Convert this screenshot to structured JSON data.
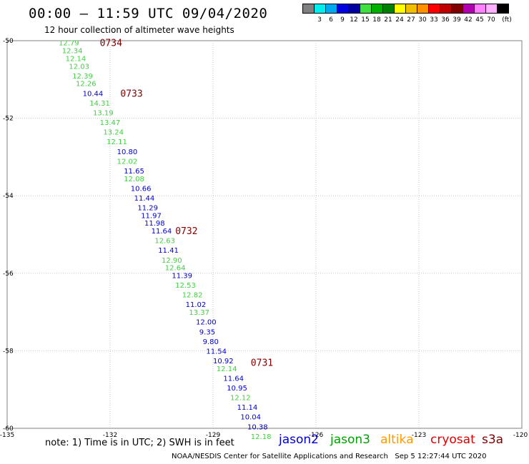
{
  "header": {
    "title": "00:00 – 11:59 UTC 09/04/2020",
    "subtitle": "12 hour collection of altimeter wave heights"
  },
  "legend": {
    "unit": "(ft)",
    "swatches": [
      {
        "color": "#808080",
        "label": ""
      },
      {
        "color": "#00eeee",
        "label": "3"
      },
      {
        "color": "#00a8f0",
        "label": "6"
      },
      {
        "color": "#0000e0",
        "label": "9"
      },
      {
        "color": "#0000a0",
        "label": "12"
      },
      {
        "color": "#40e040",
        "label": "15"
      },
      {
        "color": "#00b000",
        "label": "18"
      },
      {
        "color": "#008000",
        "label": "21"
      },
      {
        "color": "#ffff00",
        "label": "24"
      },
      {
        "color": "#f0c000",
        "label": "27"
      },
      {
        "color": "#ff9000",
        "label": "30"
      },
      {
        "color": "#ff0000",
        "label": "33"
      },
      {
        "color": "#c00000",
        "label": "36"
      },
      {
        "color": "#800000",
        "label": "39"
      },
      {
        "color": "#b000b0",
        "label": "42"
      },
      {
        "color": "#ff80ff",
        "label": "45"
      },
      {
        "color": "#ffb0ff",
        "label": "70"
      },
      {
        "color": "#000000",
        "label": ""
      }
    ]
  },
  "map": {
    "lon_ticks": [
      "-135",
      "-132",
      "-129",
      "-126",
      "-123",
      "-120"
    ],
    "lat_ticks": [
      "-50",
      "-52",
      "-54",
      "-56",
      "-58",
      "-60"
    ],
    "lon_range": [
      -135,
      -120
    ],
    "lat_range": [
      -60,
      -50
    ],
    "grid": true
  },
  "chart_data": {
    "type": "scatter",
    "track_times": [
      {
        "label": "0734",
        "lon": -132.3,
        "lat": -50.05
      },
      {
        "label": "0733",
        "lon": -131.7,
        "lat": -51.35
      },
      {
        "label": "0732",
        "lon": -130.1,
        "lat": -54.9
      },
      {
        "label": "0731",
        "lon": -127.9,
        "lat": -58.3
      }
    ],
    "points": [
      {
        "value": "12.79",
        "lon": -133.5,
        "lat": -50.05,
        "sat": "jason3"
      },
      {
        "value": "12.34",
        "lon": -133.4,
        "lat": -50.25,
        "sat": "jason3"
      },
      {
        "value": "12.14",
        "lon": -133.3,
        "lat": -50.45,
        "sat": "jason3"
      },
      {
        "value": "12.03",
        "lon": -133.2,
        "lat": -50.65,
        "sat": "jason3"
      },
      {
        "value": "12.39",
        "lon": -133.1,
        "lat": -50.9,
        "sat": "jason3"
      },
      {
        "value": "12.26",
        "lon": -133.0,
        "lat": -51.1,
        "sat": "jason3"
      },
      {
        "value": "10.44",
        "lon": -132.8,
        "lat": -51.35,
        "sat": "jason2"
      },
      {
        "value": "14.31",
        "lon": -132.6,
        "lat": -51.6,
        "sat": "jason3"
      },
      {
        "value": "13.19",
        "lon": -132.5,
        "lat": -51.85,
        "sat": "jason3"
      },
      {
        "value": "13.47",
        "lon": -132.3,
        "lat": -52.1,
        "sat": "jason3"
      },
      {
        "value": "13.24",
        "lon": -132.2,
        "lat": -52.35,
        "sat": "jason3"
      },
      {
        "value": "12.11",
        "lon": -132.1,
        "lat": -52.6,
        "sat": "jason3"
      },
      {
        "value": "10.80",
        "lon": -131.8,
        "lat": -52.85,
        "sat": "jason2"
      },
      {
        "value": "12.02",
        "lon": -131.8,
        "lat": -53.1,
        "sat": "jason3"
      },
      {
        "value": "11.65",
        "lon": -131.6,
        "lat": -53.35,
        "sat": "jason2"
      },
      {
        "value": "12.08",
        "lon": -131.6,
        "lat": -53.55,
        "sat": "jason3"
      },
      {
        "value": "10.66",
        "lon": -131.4,
        "lat": -53.8,
        "sat": "jason2"
      },
      {
        "value": "11.44",
        "lon": -131.3,
        "lat": -54.05,
        "sat": "jason2"
      },
      {
        "value": "11.29",
        "lon": -131.2,
        "lat": -54.3,
        "sat": "jason2"
      },
      {
        "value": "11.97",
        "lon": -131.1,
        "lat": -54.5,
        "sat": "jason2"
      },
      {
        "value": "11.98",
        "lon": -131.0,
        "lat": -54.7,
        "sat": "jason2"
      },
      {
        "value": "11.64",
        "lon": -130.8,
        "lat": -54.9,
        "sat": "jason2"
      },
      {
        "value": "12.63",
        "lon": -130.7,
        "lat": -55.15,
        "sat": "jason3"
      },
      {
        "value": "11.41",
        "lon": -130.6,
        "lat": -55.4,
        "sat": "jason2"
      },
      {
        "value": "12.90",
        "lon": -130.5,
        "lat": -55.65,
        "sat": "jason3"
      },
      {
        "value": "12.64",
        "lon": -130.4,
        "lat": -55.85,
        "sat": "jason3"
      },
      {
        "value": "11.39",
        "lon": -130.2,
        "lat": -56.05,
        "sat": "jason2"
      },
      {
        "value": "12.53",
        "lon": -130.1,
        "lat": -56.3,
        "sat": "jason3"
      },
      {
        "value": "12.82",
        "lon": -129.9,
        "lat": -56.55,
        "sat": "jason3"
      },
      {
        "value": "11.02",
        "lon": -129.8,
        "lat": -56.8,
        "sat": "jason2"
      },
      {
        "value": "13.37",
        "lon": -129.7,
        "lat": -57.0,
        "sat": "jason3"
      },
      {
        "value": "12.00",
        "lon": -129.5,
        "lat": -57.25,
        "sat": "jason2"
      },
      {
        "value": "9.35",
        "lon": -129.4,
        "lat": -57.5,
        "sat": "jason2"
      },
      {
        "value": "9.80",
        "lon": -129.3,
        "lat": -57.75,
        "sat": "jason2"
      },
      {
        "value": "11.54",
        "lon": -129.2,
        "lat": -58.0,
        "sat": "jason2"
      },
      {
        "value": "10.92",
        "lon": -129.0,
        "lat": -58.25,
        "sat": "jason2"
      },
      {
        "value": "12.14",
        "lon": -128.9,
        "lat": -58.45,
        "sat": "jason3"
      },
      {
        "value": "11.64",
        "lon": -128.7,
        "lat": -58.7,
        "sat": "jason2"
      },
      {
        "value": "10.95",
        "lon": -128.6,
        "lat": -58.95,
        "sat": "jason2"
      },
      {
        "value": "12.12",
        "lon": -128.5,
        "lat": -59.2,
        "sat": "jason3"
      },
      {
        "value": "11.14",
        "lon": -128.3,
        "lat": -59.45,
        "sat": "jason2"
      },
      {
        "value": "10.04",
        "lon": -128.2,
        "lat": -59.7,
        "sat": "jason2"
      },
      {
        "value": "10.38",
        "lon": -128.0,
        "lat": -59.95,
        "sat": "jason2"
      },
      {
        "value": "12.18",
        "lon": -127.9,
        "lat": -60.2,
        "sat": "jason3"
      }
    ]
  },
  "satellites": [
    {
      "name": "jason2",
      "color": "#0000cc"
    },
    {
      "name": "jason3",
      "color": "#00a000"
    },
    {
      "name": "altika",
      "color": "#ff9900"
    },
    {
      "name": "cryosat",
      "color": "#e00000"
    },
    {
      "name": "s3a",
      "color": "#800000"
    }
  ],
  "colors": {
    "jason2_text": "#0000cc",
    "jason3_text": "#40d040",
    "time_label": "#800000",
    "grid": "#c8c8c8"
  },
  "footer": {
    "note": "note: 1) Time is in UTC; 2) SWH is in feet",
    "credit": "NOAA/NESDIS Center for Satellite Applications and Research",
    "generated": "Sep  5 12:27:44 UTC 2020"
  }
}
